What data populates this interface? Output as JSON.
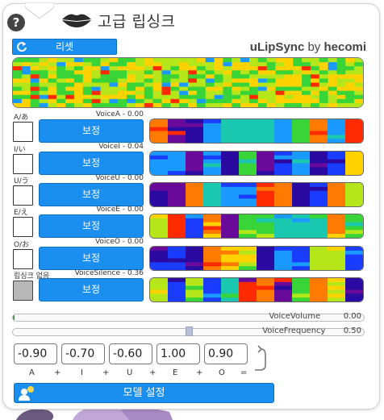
{
  "header": {
    "help_label": "?",
    "title": "고급 립싱크",
    "brand_name": "uLipSync",
    "brand_by": "by",
    "brand_author": "hecomi"
  },
  "toolbar": {
    "reset_label": "리셋"
  },
  "phonemes": [
    {
      "label": "A/あ",
      "value_text": "VoiceA - 0.00",
      "button_label": "보정",
      "active": false
    },
    {
      "label": "I/い",
      "value_text": "VoiceI - 0.04",
      "button_label": "보정",
      "active": false
    },
    {
      "label": "U/う",
      "value_text": "VoiceU - 0.00",
      "button_label": "보정",
      "active": false
    },
    {
      "label": "E/え",
      "value_text": "VoiceE - 0.00",
      "button_label": "보정",
      "active": false
    },
    {
      "label": "O/お",
      "value_text": "VoiceO - 0.00",
      "button_label": "보정",
      "active": false
    },
    {
      "label": "립싱크 없음",
      "value_text": "VoiceSilence - 0.36",
      "button_label": "보정",
      "active": true
    }
  ],
  "sliders": {
    "volume": {
      "label": "VoiceVolume",
      "value_text": "0.00",
      "level": 0.004
    },
    "frequency": {
      "label": "VoiceFrequency",
      "value_text": "0.50",
      "level": 0.5
    }
  },
  "weights": [
    {
      "value": "-0.90",
      "symbol": "A"
    },
    {
      "value": "-0.70",
      "symbol": "I"
    },
    {
      "value": "-0.60",
      "symbol": "U"
    },
    {
      "value": "1.00",
      "symbol": "E"
    },
    {
      "value": "0.90",
      "symbol": "O"
    }
  ],
  "formula": {
    "plus": "+",
    "equals": "="
  },
  "model_button_label": "모델 설정",
  "colors": {
    "accent": "#1a8ff0",
    "palette": [
      "#ff2a00",
      "#ff7a00",
      "#ffd200",
      "#b4e61a",
      "#38d438",
      "#1ac8b0",
      "#1a9aff",
      "#1a3cff",
      "#2a0aa0",
      "#6a0a9a"
    ]
  },
  "spectra_seeds": [
    11,
    23,
    37,
    41,
    53,
    67,
    79
  ]
}
